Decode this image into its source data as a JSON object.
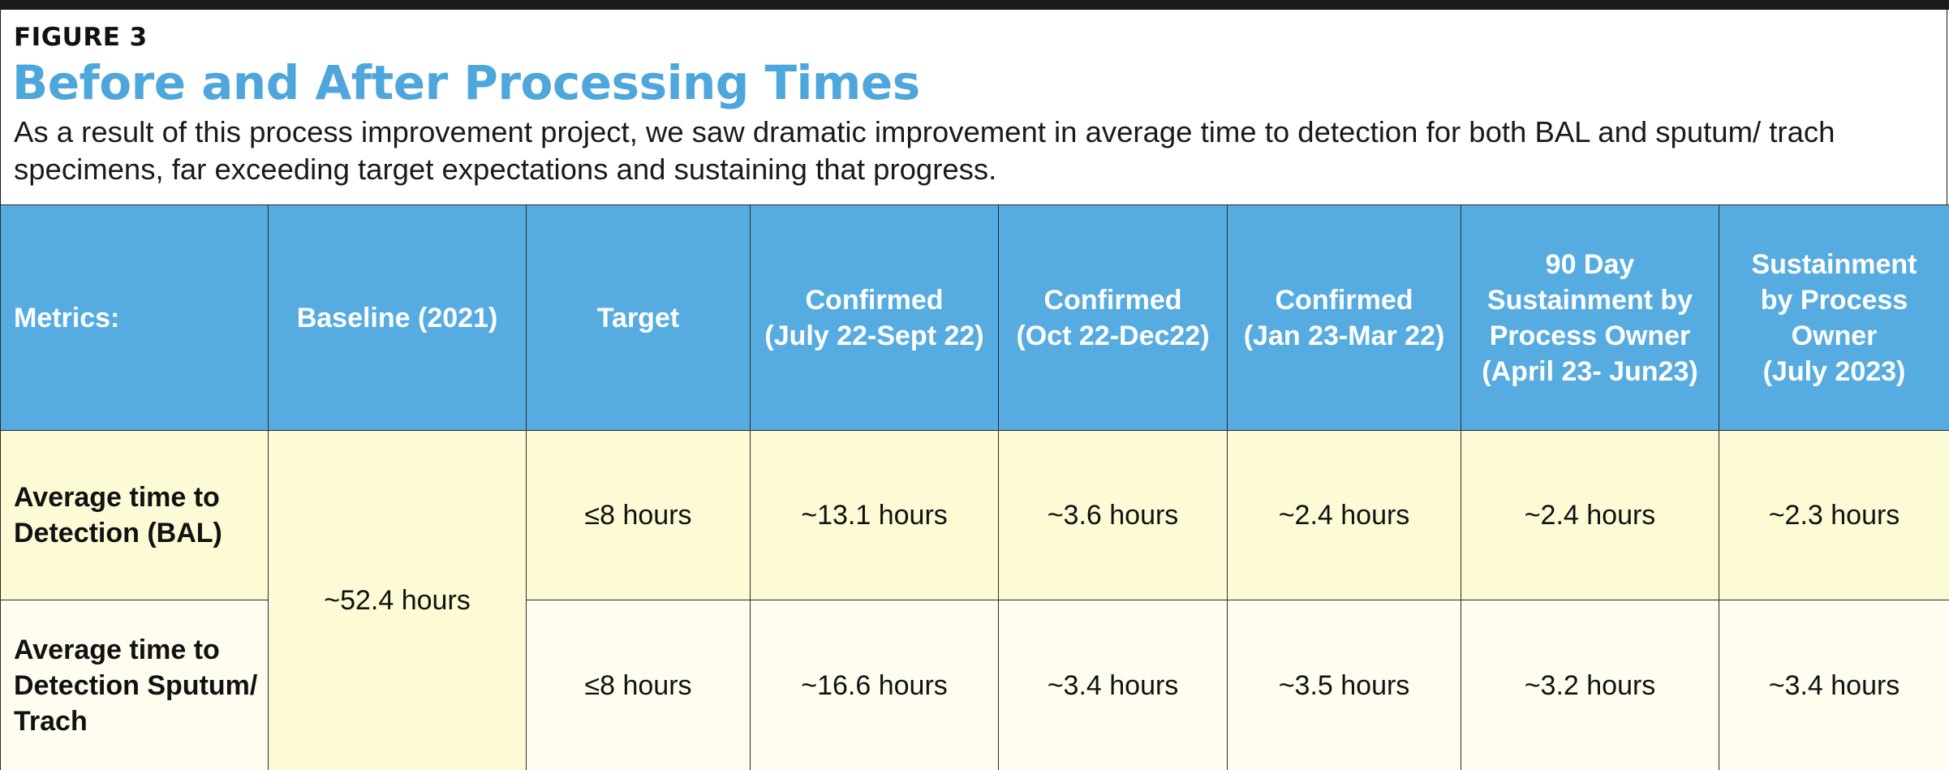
{
  "figure": {
    "label": "FIGURE 3",
    "title": "Before and After Processing Times",
    "subtitle": "As a result of this process improvement project, we saw dramatic improvement in average time to detection for both BAL and sputum/ trach specimens, far exceeding target expectations and sustaining that progress."
  },
  "colors": {
    "title": "#4da6dc",
    "header_bg": "#56ace1",
    "row1_bg": "#fdfbd5",
    "row2_bg": "#fefdf0"
  },
  "table": {
    "headers": [
      "Metrics:",
      "Baseline (2021)",
      "Target",
      "Confirmed\n(July 22-Sept 22)",
      "Confirmed\n(Oct 22-Dec22)",
      "Confirmed\n(Jan 23-Mar 22)",
      "90 Day\nSustainment by\nProcess Owner\n(April 23- Jun23)",
      "Sustainment\nby Process\nOwner\n(July 2023)"
    ],
    "baseline": "~52.4 hours",
    "rows": [
      {
        "label": "Average time to\nDetection (BAL)",
        "values": [
          "≤8 hours",
          "~13.1 hours",
          "~3.6 hours",
          "~2.4 hours",
          "~2.4 hours",
          "~2.3 hours"
        ]
      },
      {
        "label": "Average time to\nDetection Sputum/\nTrach",
        "values": [
          "≤8 hours",
          "~16.6 hours",
          "~3.4 hours",
          "~3.5 hours",
          "~3.2 hours",
          "~3.4 hours"
        ]
      }
    ]
  }
}
